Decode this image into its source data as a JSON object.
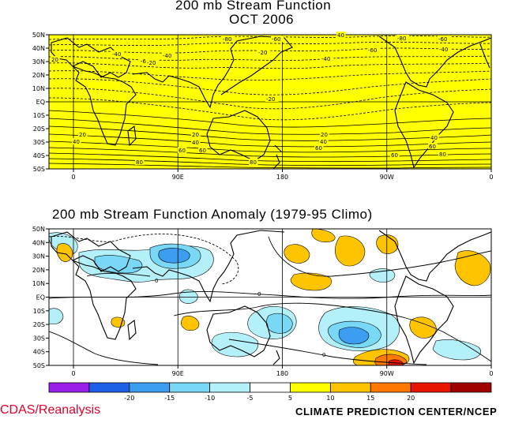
{
  "top_panel": {
    "title_line1": "200 mb Stream Function",
    "title_line2": "OCT 2006",
    "fill_color": "#ffff00",
    "lat_labels": [
      "50N",
      "40N",
      "30N",
      "20N",
      "10N",
      "EQ",
      "10S",
      "20S",
      "30S",
      "40S",
      "50S"
    ],
    "lon_labels": [
      "0",
      "90E",
      "180",
      "90W",
      "0"
    ],
    "contour_labels": [
      {
        "text": "-80"
      },
      {
        "text": "-60"
      },
      {
        "text": "-40"
      },
      {
        "text": "-60"
      },
      {
        "text": "-40"
      },
      {
        "text": "-20"
      },
      {
        "text": "-40"
      },
      {
        "text": "-60"
      },
      {
        "text": "-80"
      },
      {
        "text": "-60"
      },
      {
        "text": "-40"
      },
      {
        "text": "-20"
      },
      {
        "text": "-20"
      },
      {
        "text": "20"
      },
      {
        "text": "20"
      },
      {
        "text": "40"
      },
      {
        "text": "20"
      },
      {
        "text": "40"
      },
      {
        "text": "60"
      },
      {
        "text": "60"
      },
      {
        "text": "40"
      },
      {
        "text": "60"
      },
      {
        "text": "80"
      },
      {
        "text": "80"
      },
      {
        "text": "40"
      },
      {
        "text": "60"
      },
      {
        "text": "80"
      },
      {
        "text": "20"
      },
      {
        "text": "40"
      },
      {
        "text": "60"
      }
    ]
  },
  "bottom_panel": {
    "title": "200 mb Stream Function Anomaly (1979-95 Climo)",
    "lat_labels": [
      "50N",
      "40N",
      "30N",
      "20N",
      "10N",
      "EQ",
      "10S",
      "20S",
      "30S",
      "40S",
      "50S"
    ],
    "lon_labels": [
      "0",
      "90E",
      "180",
      "90W",
      "0"
    ],
    "contour_labels": [
      {
        "text": "0"
      },
      {
        "text": "0"
      },
      {
        "text": "0"
      }
    ]
  },
  "colorbar": {
    "labels": [
      "-20",
      "-15",
      "-10",
      "-5",
      "5",
      "10",
      "15",
      "20"
    ],
    "colors": [
      "#9b1fe8",
      "#1e5fe8",
      "#3c9ef0",
      "#78d8f5",
      "#b4f0fa",
      "#ffffff",
      "#ffff00",
      "#ffc400",
      "#ff7800",
      "#e81400",
      "#a00000"
    ]
  },
  "footer": {
    "left": "CDAS/Reanalysis",
    "right": "CLIMATE PREDICTION CENTER/NCEP"
  }
}
